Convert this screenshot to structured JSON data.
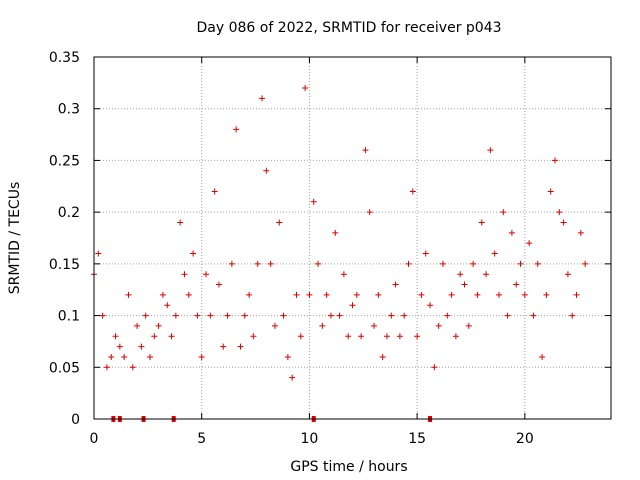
{
  "chart_data": {
    "type": "scatter",
    "title": "Day 086 of 2022, SRMTID for receiver p043",
    "xlabel": "GPS time / hours",
    "ylabel": "SRMTID / TECUs",
    "xlim": [
      0,
      24
    ],
    "ylim": [
      0,
      0.35
    ],
    "x_ticks": [
      0,
      5,
      10,
      15,
      20
    ],
    "x_tick_labels": [
      "0",
      "5",
      "10",
      "15",
      "20"
    ],
    "y_ticks": [
      0,
      0.05,
      0.1,
      0.15,
      0.2,
      0.25,
      0.3,
      0.35
    ],
    "y_tick_labels": [
      "0",
      "0.05",
      "0.1",
      "0.15",
      "0.2",
      "0.25",
      "0.3",
      "0.35"
    ],
    "grid": true,
    "marker": "+",
    "color": "#dd0000",
    "baseline_x": [
      0.9,
      1.2,
      2.3,
      3.7,
      10.2,
      15.6
    ],
    "series": [
      {
        "name": "SRMTID",
        "x": [
          0.0,
          0.2,
          0.4,
          0.6,
          0.8,
          1.0,
          1.2,
          1.4,
          1.6,
          1.8,
          2.0,
          2.2,
          2.4,
          2.6,
          2.8,
          3.0,
          3.2,
          3.4,
          3.6,
          3.8,
          4.0,
          4.2,
          4.4,
          4.6,
          4.8,
          5.0,
          5.2,
          5.4,
          5.6,
          5.8,
          6.0,
          6.2,
          6.4,
          6.6,
          6.8,
          7.0,
          7.2,
          7.4,
          7.6,
          7.8,
          8.0,
          8.2,
          8.4,
          8.6,
          8.8,
          9.0,
          9.2,
          9.4,
          9.6,
          9.8,
          10.0,
          10.2,
          10.4,
          10.6,
          10.8,
          11.0,
          11.2,
          11.4,
          11.6,
          11.8,
          12.0,
          12.2,
          12.4,
          12.6,
          12.8,
          13.0,
          13.2,
          13.4,
          13.6,
          13.8,
          14.0,
          14.2,
          14.4,
          14.6,
          14.8,
          15.0,
          15.2,
          15.4,
          15.6,
          15.8,
          16.0,
          16.2,
          16.4,
          16.6,
          16.8,
          17.0,
          17.2,
          17.4,
          17.6,
          17.8,
          18.0,
          18.2,
          18.4,
          18.6,
          18.8,
          19.0,
          19.2,
          19.4,
          19.6,
          19.8,
          20.0,
          20.2,
          20.4,
          20.6,
          20.8,
          21.0,
          21.2,
          21.4,
          21.6,
          21.8,
          22.0,
          22.2,
          22.4,
          22.6,
          22.8
        ],
        "y": [
          0.14,
          0.16,
          0.1,
          0.05,
          0.06,
          0.08,
          0.07,
          0.06,
          0.12,
          0.05,
          0.09,
          0.07,
          0.1,
          0.06,
          0.08,
          0.09,
          0.12,
          0.11,
          0.08,
          0.1,
          0.19,
          0.14,
          0.12,
          0.16,
          0.1,
          0.06,
          0.14,
          0.1,
          0.22,
          0.13,
          0.07,
          0.1,
          0.15,
          0.28,
          0.07,
          0.1,
          0.12,
          0.08,
          0.15,
          0.31,
          0.24,
          0.15,
          0.09,
          0.19,
          0.1,
          0.06,
          0.04,
          0.12,
          0.08,
          0.32,
          0.12,
          0.21,
          0.15,
          0.09,
          0.12,
          0.1,
          0.18,
          0.1,
          0.14,
          0.08,
          0.11,
          0.12,
          0.08,
          0.26,
          0.2,
          0.09,
          0.12,
          0.06,
          0.08,
          0.1,
          0.13,
          0.08,
          0.1,
          0.15,
          0.22,
          0.08,
          0.12,
          0.16,
          0.11,
          0.05,
          0.09,
          0.15,
          0.1,
          0.12,
          0.08,
          0.14,
          0.13,
          0.09,
          0.15,
          0.12,
          0.19,
          0.14,
          0.26,
          0.16,
          0.12,
          0.2,
          0.1,
          0.18,
          0.13,
          0.15,
          0.12,
          0.17,
          0.1,
          0.15,
          0.06,
          0.12,
          0.22,
          0.25,
          0.2,
          0.19,
          0.14,
          0.1,
          0.12,
          0.18,
          0.15
        ]
      }
    ]
  }
}
